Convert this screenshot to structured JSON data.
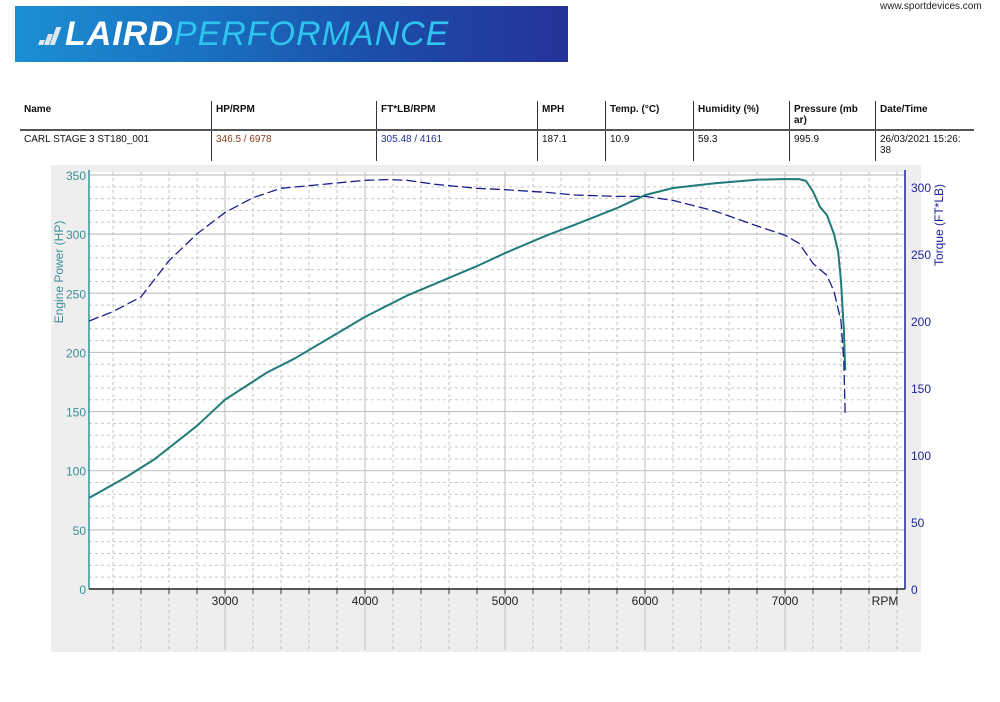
{
  "header": {
    "logo": {
      "part1": "LAIRD",
      "part2": "PERFORMANCE"
    },
    "site_url": "www.sportdevices.com"
  },
  "info_table": {
    "columns": [
      "Name",
      "HP/RPM",
      "FT*LB/RPM",
      "MPH",
      "Temp. (°C)",
      "Humidity (%)",
      "Pressure (mb ar)",
      "Date/Time"
    ],
    "row": {
      "name": "CARL STAGE 3 ST180_001",
      "hp_rpm": "346.5 / 6978",
      "torque_rpm": "305.48 / 4161",
      "mph": "187.1",
      "temp": "10.9",
      "humidity": "59.3",
      "pressure": "995.9",
      "datetime": "26/03/2021 15:26: 38"
    }
  },
  "colors": {
    "power_line": "#1f7a7a",
    "torque_line": "#1a1f8c",
    "left_axis": "#3a8f9a",
    "right_axis": "#1e2399",
    "hp_value": "#8b3a1a",
    "torque_value": "#1e2f99",
    "plot_bg": "#ffffff",
    "outer_bg": "#eeeeee"
  },
  "chart_data": {
    "type": "line",
    "title": "",
    "xlabel": "RPM",
    "ylabel": "Engine Power (HP)",
    "y2label": "Torque (FT*LB)",
    "xlim": [
      2030,
      7850
    ],
    "ylim": [
      0,
      352
    ],
    "y2lim": [
      0,
      312
    ],
    "x_ticks": [
      3000,
      4000,
      5000,
      6000,
      7000
    ],
    "y_ticks": [
      0,
      50,
      100,
      150,
      200,
      250,
      300,
      350
    ],
    "y2_ticks": [
      0,
      50,
      100,
      150,
      200,
      250,
      300
    ],
    "grid": true,
    "legend": "none",
    "series": [
      {
        "name": "Engine Power (HP)",
        "axis": "left",
        "style": "solid",
        "x": [
          2030,
          2300,
          2500,
          2800,
          3000,
          3300,
          3500,
          3800,
          4000,
          4300,
          4500,
          4800,
          5000,
          5300,
          5500,
          5800,
          6000,
          6200,
          6500,
          6800,
          6978,
          7100,
          7150,
          7200,
          7250,
          7300,
          7350,
          7380,
          7400,
          7420,
          7430
        ],
        "values": [
          77,
          95,
          110,
          138,
          160,
          183,
          195,
          216,
          230,
          248,
          258,
          273,
          284,
          299,
          308,
          322,
          333,
          339,
          343,
          346,
          346.5,
          346.5,
          345,
          336,
          323,
          316,
          300,
          285,
          260,
          220,
          185
        ]
      },
      {
        "name": "Torque (FT*LB)",
        "axis": "right",
        "style": "dashed",
        "x": [
          2030,
          2200,
          2400,
          2600,
          2800,
          3000,
          3200,
          3400,
          3600,
          3800,
          4000,
          4161,
          4300,
          4500,
          4800,
          5000,
          5300,
          5500,
          5800,
          6000,
          6200,
          6500,
          6800,
          7000,
          7100,
          7200,
          7300,
          7350,
          7400,
          7420,
          7430
        ],
        "values": [
          200,
          207,
          218,
          245,
          265,
          281,
          292,
          299,
          301,
          303,
          305,
          305.5,
          305,
          302,
          299,
          298,
          296,
          294,
          293,
          293,
          290,
          282,
          271,
          264,
          258,
          243,
          234,
          222,
          200,
          170,
          130
        ]
      }
    ]
  }
}
